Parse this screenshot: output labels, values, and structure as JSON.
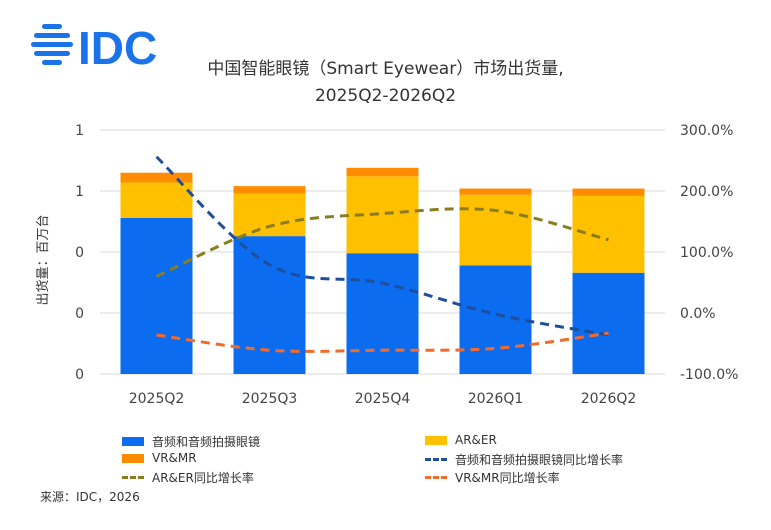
{
  "logo": {
    "text": "IDC",
    "color": "#1a73e8"
  },
  "chart_data": {
    "type": "bar",
    "title": "中国智能眼镜（Smart Eyewear）市场出货量,",
    "subtitle": "2025Q2-2026Q2",
    "ylabel": "出货量：百万台",
    "categories": [
      "2025Q2",
      "2025Q3",
      "2025Q4",
      "2026Q1",
      "2026Q2"
    ],
    "y_ticks": [
      "0",
      "0",
      "0",
      "1",
      "1"
    ],
    "y_lim": [
      0,
      2
    ],
    "y2_ticks": [
      "300.0%",
      "200.0%",
      "100.0%",
      "0.0%",
      "-100.0%"
    ],
    "y2_lim": [
      -100,
      300
    ],
    "stacked": true,
    "series": [
      {
        "name": "音频和音频拍摄眼镜",
        "kind": "bar",
        "color": "#0b6cf0",
        "values": [
          1.28,
          1.13,
          0.99,
          0.89,
          0.83
        ]
      },
      {
        "name": "AR&ER",
        "kind": "bar",
        "color": "#ffc000",
        "values": [
          0.29,
          0.35,
          0.63,
          0.58,
          0.63
        ]
      },
      {
        "name": "VR&MR",
        "kind": "bar",
        "color": "#ff8c00",
        "values": [
          0.08,
          0.06,
          0.07,
          0.05,
          0.06
        ]
      },
      {
        "name": "音频和音频拍摄眼镜同比增长率",
        "kind": "line",
        "axis": "right",
        "color": "#1f4e9c",
        "values": [
          256,
          79,
          49,
          -2,
          -36
        ]
      },
      {
        "name": "AR&ER同比增长率",
        "kind": "line",
        "axis": "right",
        "color": "#8b7d1f",
        "values": [
          60,
          142,
          163,
          168,
          120
        ]
      },
      {
        "name": "VR&MR同比增长率",
        "kind": "line",
        "axis": "right",
        "color": "#f26b2a",
        "values": [
          -36,
          -61,
          -61,
          -58,
          -33
        ]
      }
    ],
    "legend_position": "bottom",
    "grid": true
  },
  "source": "来源：IDC，2026"
}
